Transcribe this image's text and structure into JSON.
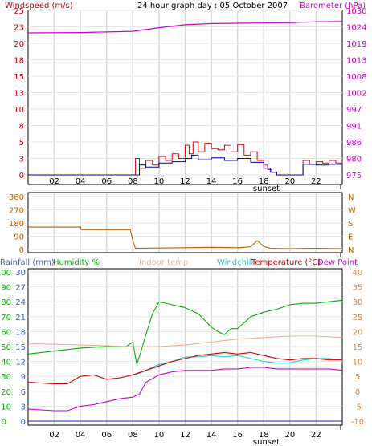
{
  "header": {
    "title": "24 hour graph day : 05 October 2007"
  },
  "x_ticks": [
    "02",
    "04",
    "06",
    "08",
    "10",
    "12",
    "14",
    "16",
    "18",
    "20",
    "22"
  ],
  "sunset_label": "sunset",
  "chart_data": [
    {
      "type": "line",
      "panel": "wind-barometer",
      "left_axis_label": "Windspeed (m/s)",
      "right_axis_label": "Barometer (hPa)",
      "left_ticks": [
        "0",
        "3",
        "5",
        "8",
        "10",
        "13",
        "15",
        "18",
        "20",
        "23",
        "25"
      ],
      "right_ticks": [
        "975",
        "980",
        "986",
        "991",
        "997",
        "1002",
        "1008",
        "1013",
        "1019",
        "1024",
        "1030"
      ],
      "left_ylim": [
        0,
        25
      ],
      "right_ylim": [
        975,
        1030
      ],
      "x_range_hours": [
        0,
        24
      ],
      "series": [
        {
          "name": "barometer",
          "axis": "right",
          "color": "#d000d0",
          "x": [
            0,
            4,
            8,
            10,
            12,
            14,
            16,
            18,
            20,
            22,
            24
          ],
          "y": [
            1022.5,
            1022.6,
            1023.0,
            1024.2,
            1025.2,
            1025.6,
            1025.7,
            1025.8,
            1025.9,
            1026.2,
            1026.3
          ]
        },
        {
          "name": "gust",
          "axis": "left",
          "color": "#e00000",
          "x": [
            0,
            8.0,
            8.2,
            8.5,
            9,
            9.5,
            10,
            10.5,
            11,
            11.5,
            12,
            12.3,
            12.6,
            13,
            13.5,
            14,
            14.5,
            15,
            15.5,
            16,
            16.5,
            17,
            17.5,
            18,
            18.3,
            18.6,
            19,
            20.5,
            21,
            21.5,
            22,
            22.5,
            23,
            23.5,
            24
          ],
          "y": [
            0,
            0,
            2.5,
            1.0,
            2.2,
            1.5,
            2.8,
            2.2,
            3.2,
            2.5,
            4.5,
            3.2,
            5.0,
            3.5,
            4.8,
            4.0,
            3.8,
            4.5,
            3.5,
            4.6,
            3.0,
            3.5,
            2.2,
            1.5,
            0.8,
            0.4,
            0,
            0,
            2.2,
            1.6,
            2.0,
            1.8,
            2.2,
            1.8,
            2.0
          ]
        },
        {
          "name": "windspeed",
          "axis": "left",
          "color": "#0000c0",
          "x": [
            0,
            8.0,
            8.5,
            9,
            10,
            11,
            12,
            12.5,
            13,
            14,
            15,
            16,
            17,
            18,
            18.5,
            19,
            20.5,
            21,
            22,
            23,
            24
          ],
          "y": [
            0,
            0,
            1.5,
            1.2,
            1.8,
            2.0,
            2.5,
            3.0,
            2.3,
            2.6,
            2.2,
            2.5,
            1.9,
            1.0,
            0.4,
            0,
            0,
            1.6,
            1.5,
            1.6,
            1.6
          ]
        }
      ]
    },
    {
      "type": "line",
      "panel": "wind-direction",
      "left_ticks": [
        "0",
        "90",
        "180",
        "270",
        "360"
      ],
      "right_ticks": [
        "N",
        "E",
        "S",
        "W",
        "N"
      ],
      "ylim": [
        0,
        360
      ],
      "x_range_hours": [
        0,
        24
      ],
      "series": [
        {
          "name": "wind direction",
          "color": "#c06000",
          "x": [
            0,
            4.0,
            4.05,
            7.8,
            8.0,
            8.2,
            10,
            12,
            14,
            16,
            17,
            17.5,
            18,
            18.5,
            20,
            22,
            24
          ],
          "y": [
            152,
            152,
            135,
            135,
            60,
            8,
            10,
            12,
            15,
            12,
            18,
            60,
            20,
            8,
            5,
            8,
            5
          ]
        }
      ]
    },
    {
      "type": "line",
      "panel": "temperature-humidity",
      "top_labels": {
        "rainfall": "Rainfall (mm)",
        "humidity": "Humidity %",
        "indoor": "Indoor temp",
        "windchill": "Windchill",
        "temperature": "Temperature (°C)",
        "dewpoint": "Dew Point"
      },
      "rain_ticks": [
        "0",
        "6",
        "12",
        "18",
        "24",
        "30"
      ],
      "humidity_ticks": [
        "10",
        "20",
        "30",
        "40",
        "50",
        "60",
        "70",
        "80",
        "90",
        "100"
      ],
      "rain_ticks_full": [
        "0",
        "3",
        "6",
        "9",
        "12",
        "15",
        "18",
        "21",
        "24",
        "27",
        "30"
      ],
      "temp_ticks": [
        "-10",
        "-5",
        "0",
        "5",
        "10",
        "15",
        "20",
        "25",
        "30",
        "35",
        "40"
      ],
      "temp_ylim": [
        -10,
        40
      ],
      "x_range_hours": [
        0,
        24
      ],
      "series": [
        {
          "name": "humidity",
          "axis": "humidity",
          "color": "#00b000",
          "x": [
            0,
            2,
            4,
            6,
            7.5,
            8.0,
            8.3,
            8.6,
            9.0,
            9.5,
            10.0,
            11,
            12,
            13,
            14,
            14.5,
            15,
            15.5,
            16,
            17,
            18,
            19,
            20,
            21,
            22,
            23,
            24
          ],
          "y": [
            45,
            47,
            49,
            50,
            50,
            53,
            38,
            46,
            58,
            72,
            80,
            78,
            76,
            72,
            63,
            60,
            58,
            62,
            62,
            70,
            73,
            75,
            78,
            79,
            79,
            80,
            81
          ]
        },
        {
          "name": "indoor temp",
          "axis": "temp",
          "color": "#f0b090",
          "x": [
            0,
            4,
            8,
            10,
            12,
            14,
            16,
            18,
            20,
            22,
            24
          ],
          "y": [
            16,
            15.5,
            15,
            15,
            15.5,
            16.5,
            17.5,
            18,
            18.5,
            18.5,
            18
          ]
        },
        {
          "name": "windchill",
          "axis": "temp",
          "color": "#20d0d0",
          "x": [
            8.0,
            8.5,
            9,
            10,
            11,
            12,
            13,
            14,
            15,
            16,
            17,
            18,
            19,
            20,
            21,
            22,
            23,
            24
          ],
          "y": [
            5.5,
            6,
            7,
            9,
            10,
            11.5,
            11.5,
            12,
            11.5,
            12,
            11,
            10,
            9.5,
            9.5,
            10.5,
            11,
            11,
            10.5
          ]
        },
        {
          "name": "temperature",
          "axis": "temp",
          "color": "#d00000",
          "x": [
            0,
            2,
            3,
            4,
            5,
            6,
            7,
            8,
            9,
            10,
            11,
            12,
            13,
            14,
            15,
            16,
            17,
            18,
            19,
            20,
            21,
            22,
            23,
            24
          ],
          "y": [
            3,
            2.5,
            2.5,
            5,
            5.5,
            4,
            4.5,
            5.5,
            7,
            8.5,
            10,
            11,
            12,
            12.5,
            13,
            12.5,
            13,
            12,
            11,
            10.5,
            11,
            11,
            10.5,
            10.5
          ]
        },
        {
          "name": "dew point",
          "axis": "temp",
          "color": "#d000d0",
          "x": [
            0,
            2,
            3,
            4,
            5,
            6,
            7,
            8,
            8.5,
            9,
            10,
            11,
            12,
            13,
            14,
            15,
            16,
            17,
            18,
            19,
            20,
            21,
            22,
            23,
            24
          ],
          "y": [
            -6,
            -6.5,
            -6.5,
            -5,
            -4.5,
            -3.5,
            -2.5,
            -2,
            -1,
            3,
            5.5,
            6.5,
            7,
            7,
            7,
            7.5,
            7.5,
            8,
            8,
            7.5,
            7.5,
            7.5,
            7.5,
            7.5,
            7
          ]
        },
        {
          "name": "rainfall",
          "axis": "rain",
          "color": "#2020d0",
          "x": [
            0,
            24
          ],
          "y": [
            0,
            0
          ]
        }
      ]
    }
  ]
}
